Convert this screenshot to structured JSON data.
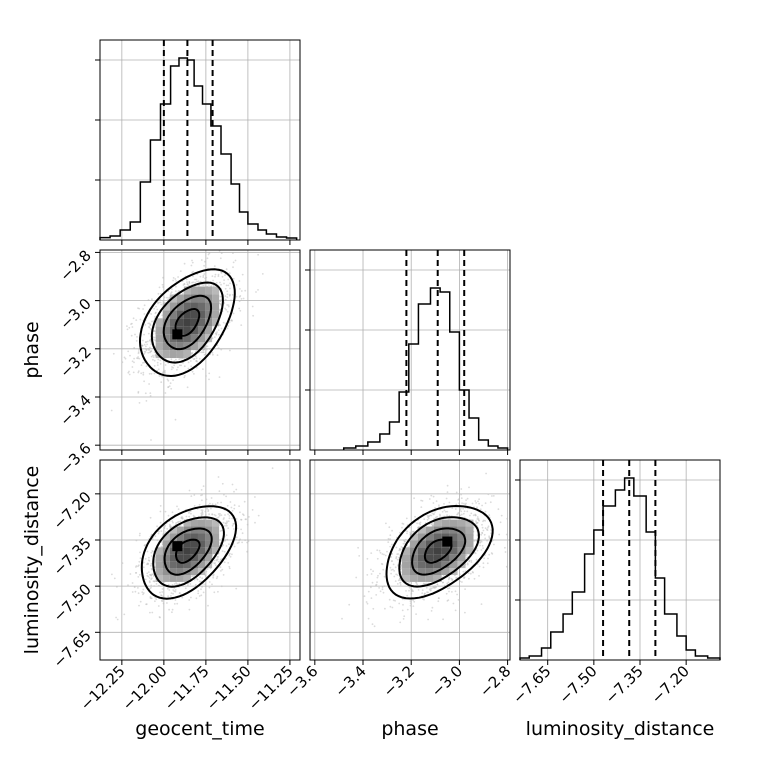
{
  "chart_data": {
    "type": "corner",
    "parameters": [
      {
        "key": "geocent_time",
        "label": "geocent_time",
        "range": [
          -12.38,
          -11.19
        ],
        "ticks": [
          -12.25,
          -12.0,
          -11.75,
          -11.5,
          -11.25
        ],
        "tick_labels": [
          "−12.25",
          "−12.00",
          "−11.75",
          "−11.50",
          "−11.25"
        ],
        "quantiles": [
          -12.0,
          -11.86,
          -11.71
        ],
        "hist": [
          {
            "x0": -12.38,
            "x1": -12.32,
            "v": 0.012
          },
          {
            "x0": -12.32,
            "x1": -12.26,
            "v": 0.02
          },
          {
            "x0": -12.26,
            "x1": -12.2,
            "v": 0.05
          },
          {
            "x0": -12.2,
            "x1": -12.14,
            "v": 0.09
          },
          {
            "x0": -12.14,
            "x1": -12.08,
            "v": 0.29
          },
          {
            "x0": -12.08,
            "x1": -12.02,
            "v": 0.5
          },
          {
            "x0": -12.02,
            "x1": -11.96,
            "v": 0.68
          },
          {
            "x0": -11.96,
            "x1": -11.91,
            "v": 0.87
          },
          {
            "x0": -11.91,
            "x1": -11.86,
            "v": 0.91
          },
          {
            "x0": -11.86,
            "x1": -11.82,
            "v": 0.9
          },
          {
            "x0": -11.82,
            "x1": -11.77,
            "v": 0.77
          },
          {
            "x0": -11.77,
            "x1": -11.72,
            "v": 0.68
          },
          {
            "x0": -11.72,
            "x1": -11.66,
            "v": 0.57
          },
          {
            "x0": -11.66,
            "x1": -11.6,
            "v": 0.43
          },
          {
            "x0": -11.6,
            "x1": -11.55,
            "v": 0.28
          },
          {
            "x0": -11.55,
            "x1": -11.5,
            "v": 0.14
          },
          {
            "x0": -11.5,
            "x1": -11.44,
            "v": 0.08
          },
          {
            "x0": -11.44,
            "x1": -11.39,
            "v": 0.05
          },
          {
            "x0": -11.39,
            "x1": -11.33,
            "v": 0.03
          },
          {
            "x0": -11.33,
            "x1": -11.27,
            "v": 0.015
          },
          {
            "x0": -11.27,
            "x1": -11.21,
            "v": 0.01
          }
        ]
      },
      {
        "key": "phase",
        "label": "phase",
        "range": [
          -3.62,
          -2.79
        ],
        "ticks": [
          -3.6,
          -3.4,
          -3.2,
          -3.0,
          -2.8
        ],
        "tick_labels": [
          "−3.6",
          "−3.4",
          "−3.2",
          "−3.0",
          "−2.8"
        ],
        "quantiles": [
          -3.22,
          -3.09,
          -2.98
        ],
        "hist": [
          {
            "x0": -3.48,
            "x1": -3.43,
            "v": 0.01
          },
          {
            "x0": -3.43,
            "x1": -3.38,
            "v": 0.02
          },
          {
            "x0": -3.38,
            "x1": -3.33,
            "v": 0.04
          },
          {
            "x0": -3.33,
            "x1": -3.29,
            "v": 0.08
          },
          {
            "x0": -3.29,
            "x1": -3.25,
            "v": 0.14
          },
          {
            "x0": -3.25,
            "x1": -3.21,
            "v": 0.29
          },
          {
            "x0": -3.21,
            "x1": -3.17,
            "v": 0.53
          },
          {
            "x0": -3.17,
            "x1": -3.12,
            "v": 0.73
          },
          {
            "x0": -3.12,
            "x1": -3.08,
            "v": 0.81
          },
          {
            "x0": -3.08,
            "x1": -3.04,
            "v": 0.79
          },
          {
            "x0": -3.04,
            "x1": -3.0,
            "v": 0.59
          },
          {
            "x0": -3.0,
            "x1": -2.96,
            "v": 0.3
          },
          {
            "x0": -2.96,
            "x1": -2.92,
            "v": 0.16
          },
          {
            "x0": -2.92,
            "x1": -2.88,
            "v": 0.05
          },
          {
            "x0": -2.88,
            "x1": -2.84,
            "v": 0.02
          },
          {
            "x0": -2.84,
            "x1": -2.8,
            "v": 0.01
          }
        ]
      },
      {
        "key": "luminosity_distance",
        "label": "luminosity_distance",
        "range": [
          -7.74,
          -7.09
        ],
        "ticks": [
          -7.65,
          -7.5,
          -7.35,
          -7.2
        ],
        "tick_labels": [
          "−7.65",
          "−7.50",
          "−7.35",
          "−7.20"
        ],
        "quantiles": [
          -7.47,
          -7.385,
          -7.3
        ],
        "hist": [
          {
            "x0": -7.74,
            "x1": -7.71,
            "v": 0.01
          },
          {
            "x0": -7.71,
            "x1": -7.67,
            "v": 0.02
          },
          {
            "x0": -7.67,
            "x1": -7.64,
            "v": 0.06
          },
          {
            "x0": -7.64,
            "x1": -7.6,
            "v": 0.14
          },
          {
            "x0": -7.6,
            "x1": -7.57,
            "v": 0.23
          },
          {
            "x0": -7.57,
            "x1": -7.53,
            "v": 0.34
          },
          {
            "x0": -7.53,
            "x1": -7.5,
            "v": 0.53
          },
          {
            "x0": -7.5,
            "x1": -7.47,
            "v": 0.65
          },
          {
            "x0": -7.47,
            "x1": -7.43,
            "v": 0.77
          },
          {
            "x0": -7.43,
            "x1": -7.4,
            "v": 0.85
          },
          {
            "x0": -7.4,
            "x1": -7.37,
            "v": 0.91
          },
          {
            "x0": -7.37,
            "x1": -7.33,
            "v": 0.82
          },
          {
            "x0": -7.33,
            "x1": -7.3,
            "v": 0.64
          },
          {
            "x0": -7.3,
            "x1": -7.27,
            "v": 0.41
          },
          {
            "x0": -7.27,
            "x1": -7.23,
            "v": 0.23
          },
          {
            "x0": -7.23,
            "x1": -7.2,
            "v": 0.12
          },
          {
            "x0": -7.2,
            "x1": -7.17,
            "v": 0.05
          },
          {
            "x0": -7.17,
            "x1": -7.13,
            "v": 0.02
          },
          {
            "x0": -7.13,
            "x1": -7.09,
            "v": 0.01
          }
        ]
      }
    ],
    "pairs": [
      {
        "x": "geocent_time",
        "y": "phase",
        "center": [
          -11.86,
          -3.09
        ],
        "sd": [
          0.14,
          0.11
        ],
        "corr": 0.45,
        "max_point": [
          -11.92,
          -3.14
        ],
        "contour_levels_sigma": [
          0.5,
          1.0,
          1.5,
          2.0
        ]
      },
      {
        "x": "geocent_time",
        "y": "luminosity_distance",
        "center": [
          -11.86,
          -7.385
        ],
        "sd": [
          0.14,
          0.075
        ],
        "corr": 0.45,
        "max_point": [
          -11.92,
          -7.37
        ],
        "contour_levels_sigma": [
          0.5,
          1.0,
          1.5,
          2.0
        ]
      },
      {
        "x": "phase",
        "y": "luminosity_distance",
        "center": [
          -3.09,
          -7.385
        ],
        "sd": [
          0.11,
          0.075
        ],
        "corr": 0.45,
        "max_point": [
          -3.05,
          -7.355
        ],
        "contour_levels_sigma": [
          0.5,
          1.0,
          1.5,
          2.0
        ]
      }
    ],
    "grid": true,
    "colors": {
      "line": "#000000",
      "grid": "#b0b0b0",
      "scatter": "#bdbdbd"
    }
  }
}
